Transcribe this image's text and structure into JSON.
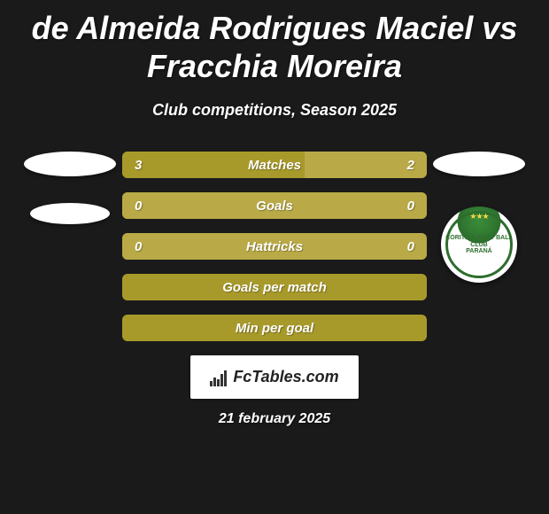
{
  "background_color": "#1a1a1a",
  "text_color": "#ffffff",
  "title": "de Almeida Rodrigues Maciel vs Fracchia Moreira",
  "title_fontsize": 36,
  "subtitle": "Club competitions, Season 2025",
  "subtitle_fontsize": 18,
  "bar_color_left": "#a89a2a",
  "bar_color_right": "#b9aa47",
  "bar_color_neutral": "#a89a2a",
  "bar_radius": 6,
  "rows": [
    {
      "label": "Matches",
      "left": "3",
      "right": "2",
      "left_pct": 60,
      "right_pct": 40
    },
    {
      "label": "Goals",
      "left": "0",
      "right": "0",
      "left_pct": 0,
      "right_pct": 100
    },
    {
      "label": "Hattricks",
      "left": "0",
      "right": "0",
      "left_pct": 0,
      "right_pct": 100
    },
    {
      "label": "Goals per match",
      "left": "",
      "right": "",
      "left_pct": 0,
      "right_pct": 0
    },
    {
      "label": "Min per goal",
      "left": "",
      "right": "",
      "left_pct": 0,
      "right_pct": 0
    }
  ],
  "left_player": {
    "avatar_shape": "ellipse",
    "club_shape": "ellipse-small"
  },
  "right_player": {
    "avatar_shape": "ellipse",
    "club_name": "CORITIBA FOOT BALL CLUB",
    "club_sub": "PARANÁ",
    "club_color_primary": "#2d6e2d",
    "club_color_bg": "#ffffff"
  },
  "footer": {
    "brand": "FcTables.com",
    "date": "21 february 2025"
  }
}
